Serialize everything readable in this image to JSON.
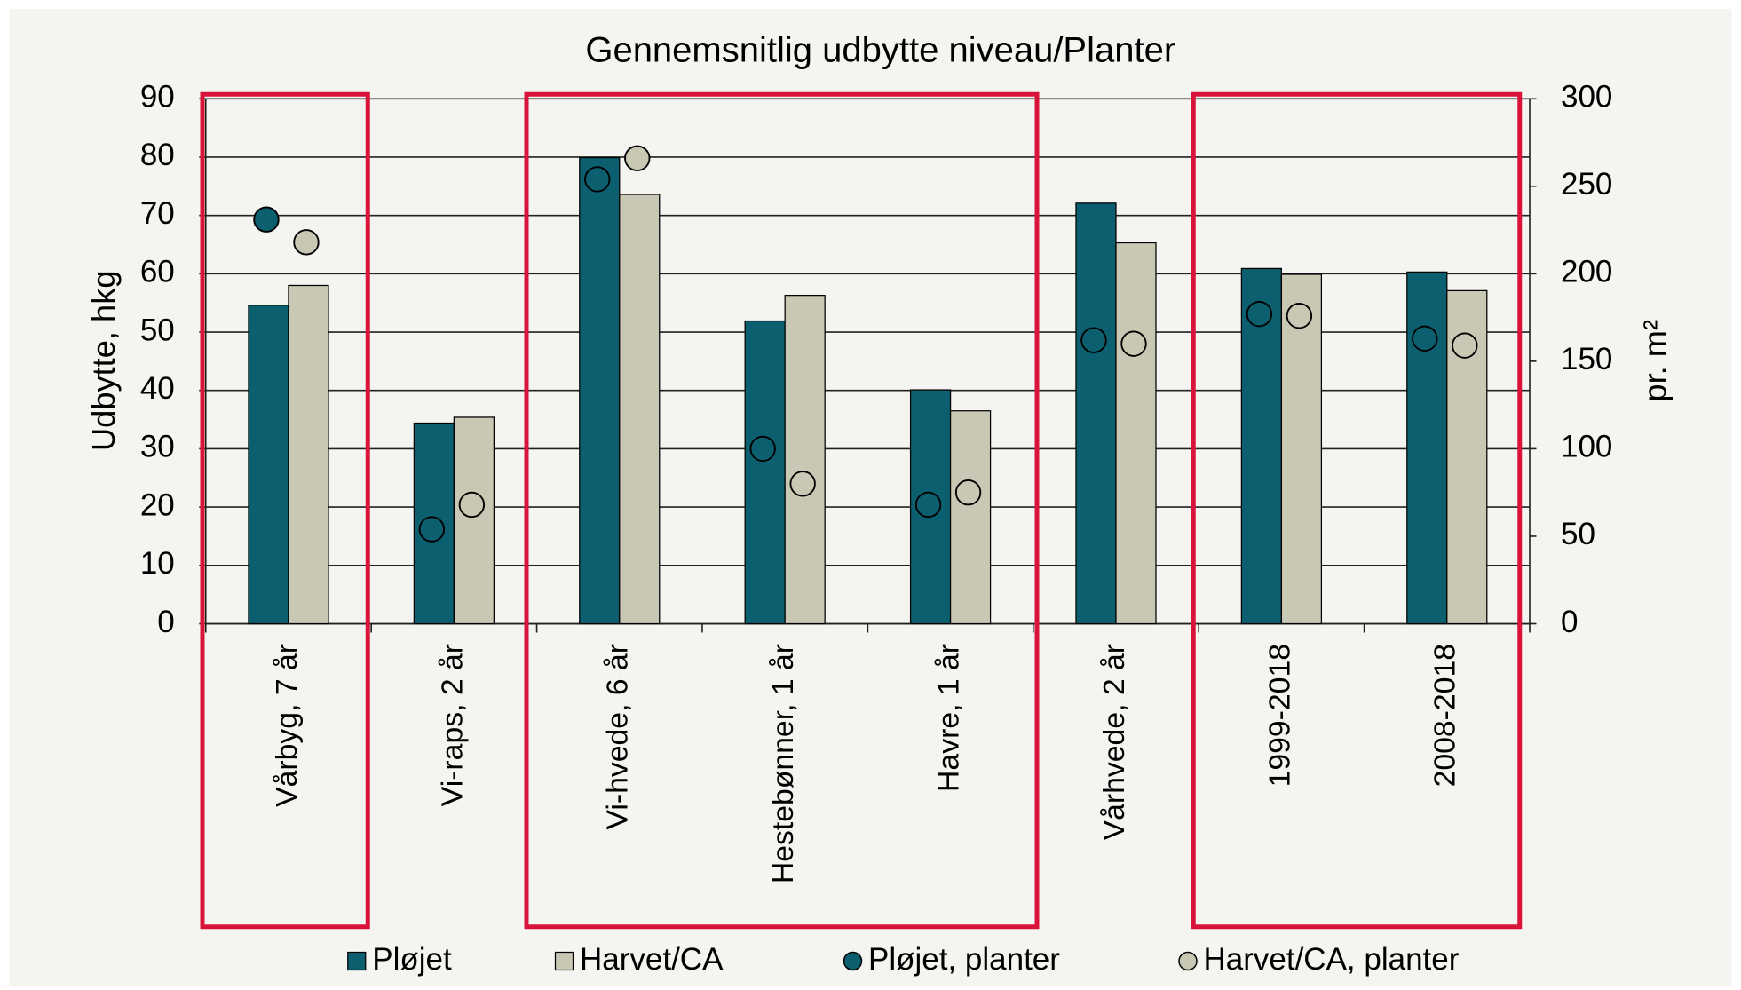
{
  "chart_data": {
    "type": "bar",
    "title": "Gennemsnitlig udbytte niveau/Planter",
    "ylabel": "Udbytte, hkg",
    "y2label": "pr. m²",
    "categories": [
      "Vårbyg, 7 år",
      "Vi-raps, 2 år",
      "Vi-hvede, 6 år",
      "Hestebønner, 1 år",
      "Havre, 1 år",
      "Vårhvede, 2 år",
      "1999-2018",
      "2008-2018"
    ],
    "series": [
      {
        "name": "Pløjet",
        "color": "#0b5f6e",
        "kind": "bar",
        "values": [
          54.6,
          34.4,
          79.9,
          51.9,
          40.1,
          72.1,
          60.9,
          60.3
        ]
      },
      {
        "name": "Harvet/CA",
        "color": "#c9c8b4",
        "kind": "bar",
        "values": [
          58.0,
          35.4,
          73.6,
          56.3,
          36.5,
          65.3,
          59.9,
          57.1
        ]
      },
      {
        "name": "Pløjet, planter",
        "color": "#0b5f6e",
        "kind": "marker",
        "axis": "y2",
        "values": [
          231,
          54,
          254,
          100,
          68,
          162,
          177,
          163
        ]
      },
      {
        "name": "Harvet/CA, planter",
        "color": "#c9c8b4",
        "kind": "marker",
        "axis": "y2",
        "values": [
          218,
          68,
          266,
          80,
          75,
          160,
          176,
          159
        ]
      }
    ],
    "ylim": [
      0,
      90
    ],
    "yticks": [
      0,
      10,
      20,
      30,
      40,
      50,
      60,
      70,
      80,
      90
    ],
    "y2lim": [
      0,
      300
    ],
    "y2ticks": [
      0,
      50,
      100,
      150,
      200,
      250,
      300
    ],
    "grid": true,
    "legend": "bottom"
  }
}
